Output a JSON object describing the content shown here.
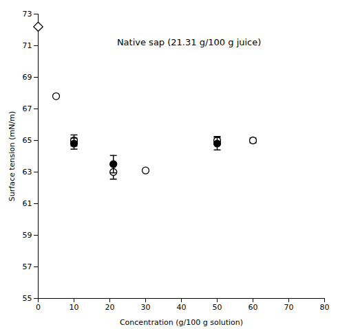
{
  "chart_data": {
    "type": "scatter",
    "xlabel": "Concentration (g/100 g solution)",
    "ylabel": "Surface tension (mN/m)",
    "xlim": [
      0,
      80
    ],
    "ylim": [
      55,
      73
    ],
    "xticks": [
      0,
      10,
      20,
      30,
      40,
      50,
      60,
      70,
      80
    ],
    "yticks": [
      55,
      57,
      59,
      61,
      63,
      65,
      67,
      69,
      71,
      73
    ],
    "grid": false,
    "series": [
      {
        "marker": "diamond",
        "color": "#ffffff",
        "x": [
          0
        ],
        "values": [
          72.2
        ]
      },
      {
        "marker": "circle",
        "color": "#ffffff",
        "x": [
          5,
          10,
          21,
          30,
          50,
          60
        ],
        "values": [
          67.8,
          65.0,
          63.0,
          63.1,
          65.0,
          65.0
        ],
        "yerr": [
          0.0,
          0.35,
          0.45,
          0.0,
          0.25,
          0.15
        ]
      },
      {
        "marker": "circle",
        "color": "#000000",
        "x": [
          10,
          21,
          50
        ],
        "values": [
          64.8,
          63.5,
          64.8
        ],
        "yerr": [
          0.35,
          0.55,
          0.4
        ]
      }
    ],
    "annotations": [
      {
        "text": "Native sap (21.31 g/100 g juice)",
        "x": 22,
        "y": 71.2
      }
    ]
  }
}
